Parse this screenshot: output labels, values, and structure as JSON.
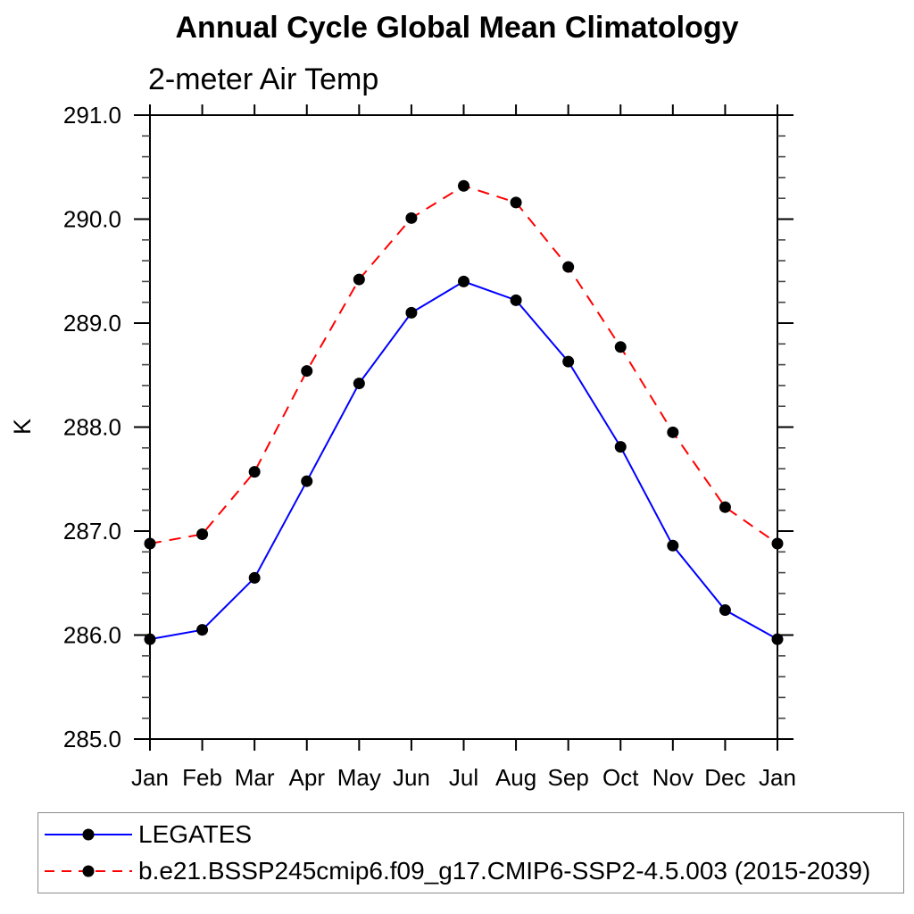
{
  "page": {
    "background": "#ffffff"
  },
  "chart_data": {
    "type": "line",
    "title": "Annual Cycle Global Mean Climatology",
    "subtitle": "2-meter Air Temp",
    "ylabel": "K",
    "xlabel": "",
    "categories": [
      "Jan",
      "Feb",
      "Mar",
      "Apr",
      "May",
      "Jun",
      "Jul",
      "Aug",
      "Sep",
      "Oct",
      "Nov",
      "Dec",
      "Jan"
    ],
    "ylim": [
      285.0,
      291.0
    ],
    "ytick_step": 1.0,
    "ytick_minor_step": 0.2,
    "ytick_labels": [
      "285.0",
      "286.0",
      "287.0",
      "288.0",
      "289.0",
      "290.0",
      "291.0"
    ],
    "grid": false,
    "legend_position": "bottom-left",
    "axis_color": "#000000",
    "marker_color": "#000000",
    "series": [
      {
        "name": "LEGATES",
        "color": "#0000ff",
        "line_style": "solid",
        "marker": "circle",
        "values": [
          285.96,
          286.05,
          286.55,
          287.48,
          288.42,
          289.1,
          289.4,
          289.22,
          288.63,
          287.81,
          286.86,
          286.24,
          285.96
        ]
      },
      {
        "name": "b.e21.BSSP245cmip6.f09_g17.CMIP6-SSP2-4.5.003 (2015-2039)",
        "color": "#ff0000",
        "line_style": "dashed",
        "marker": "circle",
        "values": [
          286.88,
          286.97,
          287.57,
          288.54,
          289.42,
          290.01,
          290.32,
          290.16,
          289.54,
          288.77,
          287.95,
          287.23,
          286.88
        ]
      }
    ]
  }
}
